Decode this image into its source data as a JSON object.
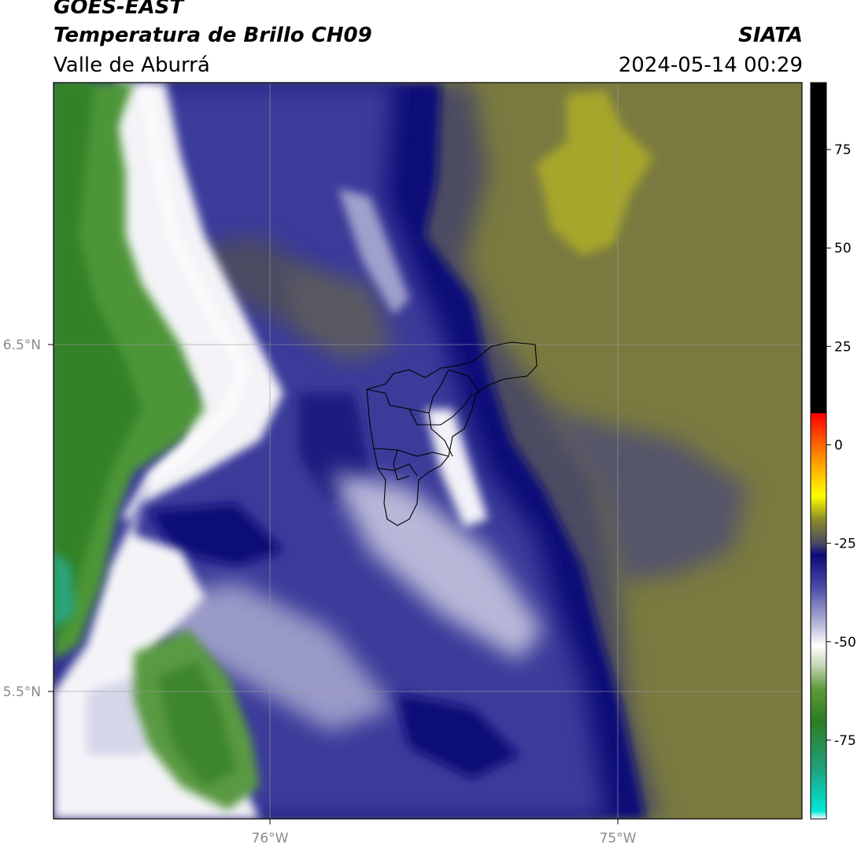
{
  "header": {
    "satellite": "GOES-EAST",
    "product": "Temperatura de Brillo CH09",
    "region": "Valle de Aburrá",
    "organization": "SIATA",
    "datetime": "2024-05-14 00:29"
  },
  "map": {
    "lat_ticks": [
      "6.5°N",
      "5.5°N"
    ],
    "lon_ticks": [
      "76°W",
      "75°W"
    ],
    "grid_color": "#9a9a9a",
    "boundary_color": "#000000"
  },
  "colorbar": {
    "tick_labels": [
      "75",
      "50",
      "25",
      "0",
      "-25",
      "-50",
      "-75"
    ],
    "min": -95,
    "max": 92,
    "stops": [
      {
        "value": -95,
        "color": "#ffffff"
      },
      {
        "value": -93,
        "color": "#00e6d8"
      },
      {
        "value": -82,
        "color": "#20a07a"
      },
      {
        "value": -70,
        "color": "#2e7d22"
      },
      {
        "value": -62,
        "color": "#5e9a3c"
      },
      {
        "value": -56,
        "color": "#c6d6b6"
      },
      {
        "value": -51,
        "color": "#ffffff"
      },
      {
        "value": -45,
        "color": "#b0b0d6"
      },
      {
        "value": -36,
        "color": "#4a4aa8"
      },
      {
        "value": -28,
        "color": "#0a0a7a"
      },
      {
        "value": -25,
        "color": "#4a4a64"
      },
      {
        "value": -19,
        "color": "#8a8a2a"
      },
      {
        "value": -13,
        "color": "#ffff00"
      },
      {
        "value": -4,
        "color": "#ff9900"
      },
      {
        "value": 8,
        "color": "#ff0000"
      },
      {
        "value": 8.1,
        "color": "#000000"
      },
      {
        "value": 92,
        "color": "#000000"
      }
    ]
  },
  "legend_colors": {
    "cold_green": "#3a8a2a",
    "white": "#ffffff",
    "blue": "#3a3a9a",
    "dark_blue": "#0b0b78",
    "dark_gray": "#4c4c62",
    "olive": "#7a7a40",
    "yellow": "#a4a42a"
  }
}
